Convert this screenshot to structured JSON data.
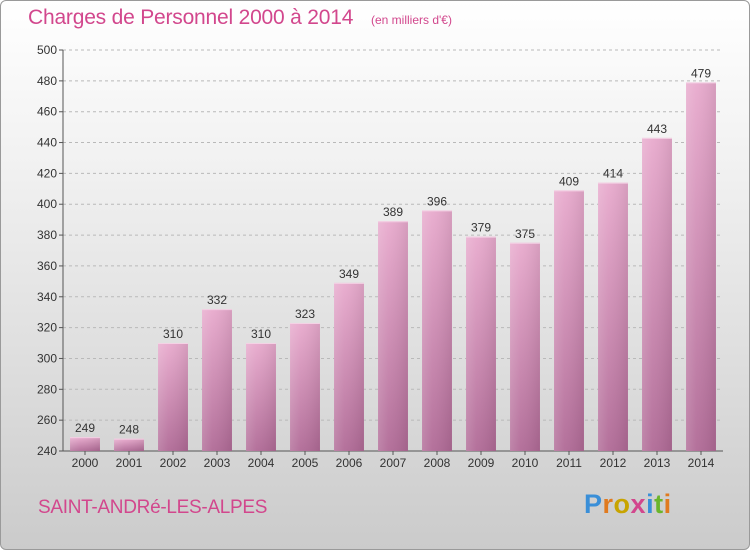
{
  "header": {
    "title": "Charges de Personnel 2000 à 2014",
    "subtitle": "(en milliers d'€)"
  },
  "footer": {
    "commune": "SAINT-ANDRé-LES-ALPES",
    "logo_text": "Proxiti",
    "logo_colors": [
      "#3a8fd8",
      "#e07a1f",
      "#c8a400",
      "#d2478d",
      "#3a8fd8",
      "#6bb52a",
      "#e07a1f"
    ]
  },
  "colors": {
    "bar_top": "#e8aacd",
    "bar_bottom": "#b06a96",
    "accent": "#d2478d"
  },
  "chart_data": {
    "type": "bar",
    "title": "Charges de Personnel 2000 à 2014",
    "subtitle": "(en milliers d'€)",
    "categories": [
      "2000",
      "2001",
      "2002",
      "2003",
      "2004",
      "2005",
      "2006",
      "2007",
      "2008",
      "2009",
      "2010",
      "2011",
      "2012",
      "2013",
      "2014"
    ],
    "values": [
      249,
      248,
      310,
      332,
      310,
      323,
      349,
      389,
      396,
      379,
      375,
      409,
      414,
      443,
      479
    ],
    "ylim": [
      240,
      500
    ],
    "yticks": [
      240,
      260,
      280,
      300,
      320,
      340,
      360,
      380,
      400,
      420,
      440,
      460,
      480,
      500
    ],
    "grid": true,
    "xlabel": "",
    "ylabel": ""
  }
}
